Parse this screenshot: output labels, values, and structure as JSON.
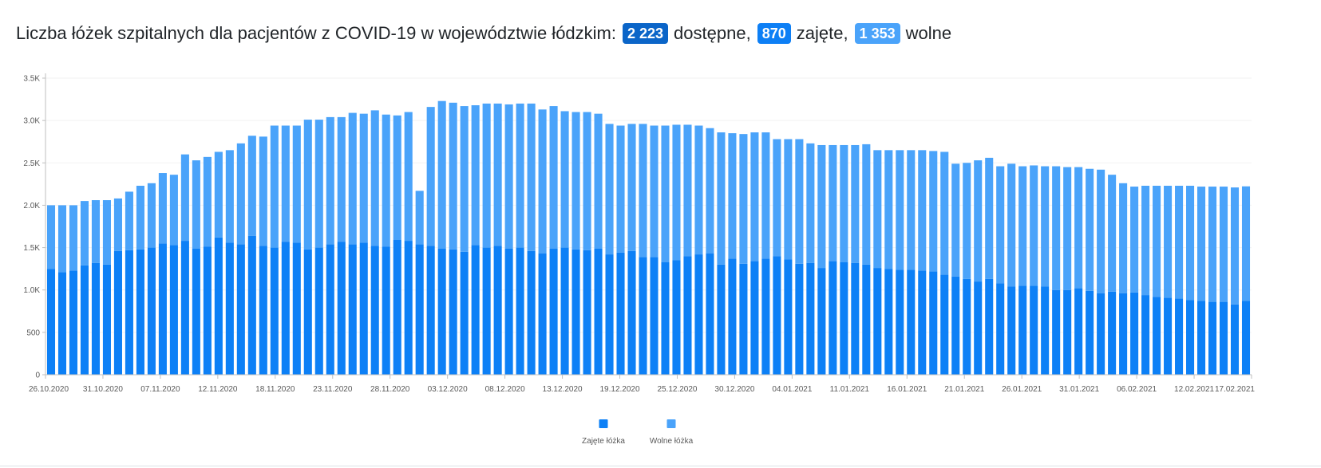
{
  "header": {
    "title_prefix": "Liczba łóżek szpitalnych dla pacjentów z COVID-19 w województwie łódzkim:",
    "available_value": "2 223",
    "available_label": "dostępne,",
    "occupied_value": "870",
    "occupied_label": "zajęte,",
    "free_value": "1 353",
    "free_label": "wolne"
  },
  "colors": {
    "occupied": "#0d80f6",
    "free": "#4aa3fa",
    "axis": "#bfbfbf",
    "grid": "#f2f2f2"
  },
  "chart_data": {
    "type": "bar",
    "stacked": true,
    "ylim": [
      0,
      3500
    ],
    "yticks": [
      0,
      500,
      1000,
      1500,
      2000,
      2500,
      3000,
      3500
    ],
    "ytick_labels": [
      "0",
      "500",
      "1.0K",
      "1.5K",
      "2.0K",
      "2.5K",
      "3.0K",
      "3.5K"
    ],
    "x_tick_labels": [
      "26.10.2020",
      "31.10.2020",
      "07.11.2020",
      "12.11.2020",
      "18.11.2020",
      "23.11.2020",
      "28.11.2020",
      "03.12.2020",
      "08.12.2020",
      "13.12.2020",
      "19.12.2020",
      "25.12.2020",
      "30.12.2020",
      "04.01.2021",
      "11.01.2021",
      "16.01.2021",
      "21.01.2021",
      "26.01.2021",
      "31.01.2021",
      "06.02.2021",
      "12.02.2021",
      "17.02.2021"
    ],
    "legend": [
      "Zajęte łóżka",
      "Wolne łóżka"
    ],
    "legend_position": "bottom",
    "series": [
      {
        "name": "Zajęte łóżka",
        "values": [
          1250,
          1210,
          1230,
          1290,
          1320,
          1300,
          1460,
          1470,
          1480,
          1500,
          1550,
          1530,
          1580,
          1490,
          1510,
          1620,
          1560,
          1540,
          1640,
          1520,
          1500,
          1570,
          1560,
          1480,
          1500,
          1540,
          1570,
          1540,
          1560,
          1520,
          1510,
          1590,
          1580,
          1540,
          1520,
          1490,
          1480,
          1450,
          1530,
          1500,
          1520,
          1490,
          1500,
          1460,
          1430,
          1490,
          1500,
          1480,
          1470,
          1490,
          1420,
          1440,
          1460,
          1390,
          1390,
          1330,
          1350,
          1400,
          1420,
          1430,
          1300,
          1370,
          1310,
          1340,
          1370,
          1400,
          1360,
          1310,
          1320,
          1260,
          1340,
          1330,
          1320,
          1300,
          1260,
          1250,
          1240,
          1240,
          1230,
          1220,
          1180,
          1160,
          1130,
          1100,
          1130,
          1080,
          1040,
          1050,
          1050,
          1040,
          1000,
          1000,
          1020,
          990,
          960,
          980,
          960,
          970,
          940,
          920,
          910,
          900,
          880,
          870,
          860,
          860,
          830,
          870
        ]
      },
      {
        "name": "Wolne łóżka",
        "values": [
          750,
          790,
          770,
          760,
          740,
          760,
          620,
          690,
          750,
          760,
          830,
          830,
          1020,
          1040,
          1060,
          1010,
          1090,
          1190,
          1180,
          1290,
          1440,
          1370,
          1380,
          1530,
          1510,
          1500,
          1470,
          1550,
          1520,
          1600,
          1560,
          1470,
          1520,
          630,
          1640,
          1740,
          1730,
          1720,
          1650,
          1700,
          1680,
          1700,
          1700,
          1740,
          1700,
          1680,
          1610,
          1620,
          1630,
          1590,
          1540,
          1500,
          1500,
          1570,
          1550,
          1610,
          1600,
          1550,
          1520,
          1480,
          1560,
          1480,
          1530,
          1520,
          1490,
          1380,
          1420,
          1470,
          1410,
          1450,
          1370,
          1380,
          1390,
          1420,
          1390,
          1400,
          1410,
          1410,
          1420,
          1420,
          1450,
          1330,
          1370,
          1430,
          1430,
          1380,
          1450,
          1410,
          1420,
          1420,
          1460,
          1450,
          1430,
          1440,
          1460,
          1380,
          1300,
          1250,
          1290,
          1310,
          1320,
          1330,
          1350,
          1350,
          1360,
          1360,
          1380,
          1353
        ]
      }
    ]
  }
}
